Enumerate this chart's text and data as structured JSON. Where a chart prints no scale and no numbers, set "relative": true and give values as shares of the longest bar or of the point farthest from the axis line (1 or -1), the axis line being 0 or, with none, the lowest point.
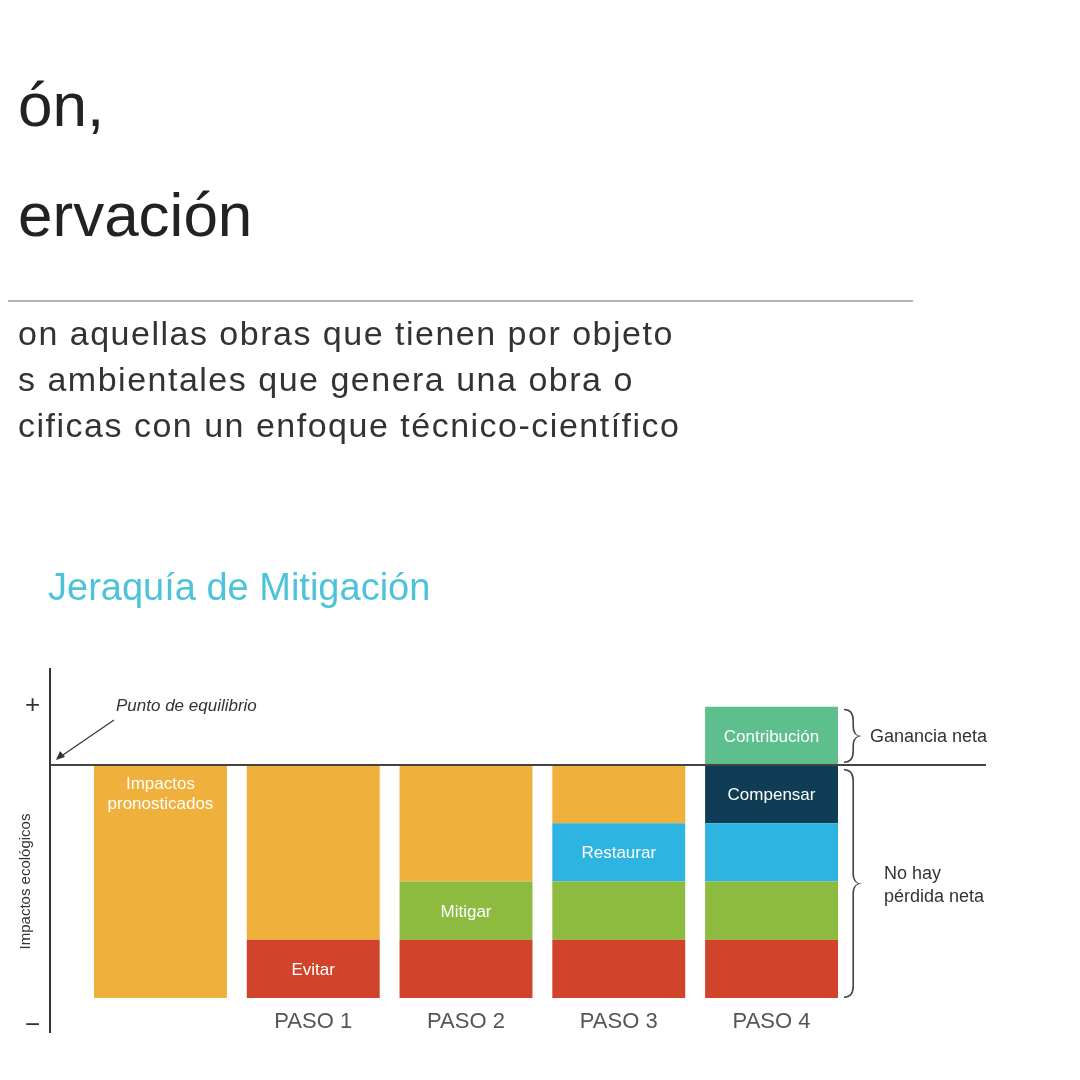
{
  "chart_data": {
    "type": "bar",
    "stacked": true,
    "relative": true,
    "title": "Jeraquía de Mitigación",
    "ylabel": "Impactos ecológicos",
    "categories": [
      null,
      "PASO 1",
      "PASO 2",
      "PASO 3",
      "PASO 4"
    ],
    "series": [
      {
        "name": "Impactos pronosticados",
        "color": "#f0b03c",
        "values": [
          -1,
          -0.75,
          -0.5,
          -0.25,
          null
        ]
      },
      {
        "name": "Compensar",
        "color": "#0f3d56",
        "values": [
          null,
          null,
          null,
          null,
          -0.25
        ]
      },
      {
        "name": "Restaurar",
        "color": "#2db4e0",
        "values": [
          null,
          null,
          null,
          -0.25,
          -0.25
        ]
      },
      {
        "name": "Mitigar",
        "color": "#8dbb40",
        "values": [
          null,
          null,
          -0.25,
          -0.25,
          -0.25
        ]
      },
      {
        "name": "Evitar",
        "color": "#d2432b",
        "values": [
          null,
          -0.25,
          -0.25,
          -0.25,
          -0.25
        ]
      },
      {
        "name": "Contribución",
        "color": "#5cbf8c",
        "values": [
          null,
          null,
          null,
          null,
          0.25
        ]
      }
    ],
    "legend": false,
    "annotations": [
      "ón,",
      "ervación",
      "on aquellas obras que tienen por objeto",
      "s ambientales que genera una obra o",
      "cificas con un enfoque técnico-científico",
      "+",
      "−",
      "Ganancia neta",
      "No hay pérdida neta",
      {
        "text": "Punto de equilibrio",
        "y": 0
      }
    ]
  }
}
